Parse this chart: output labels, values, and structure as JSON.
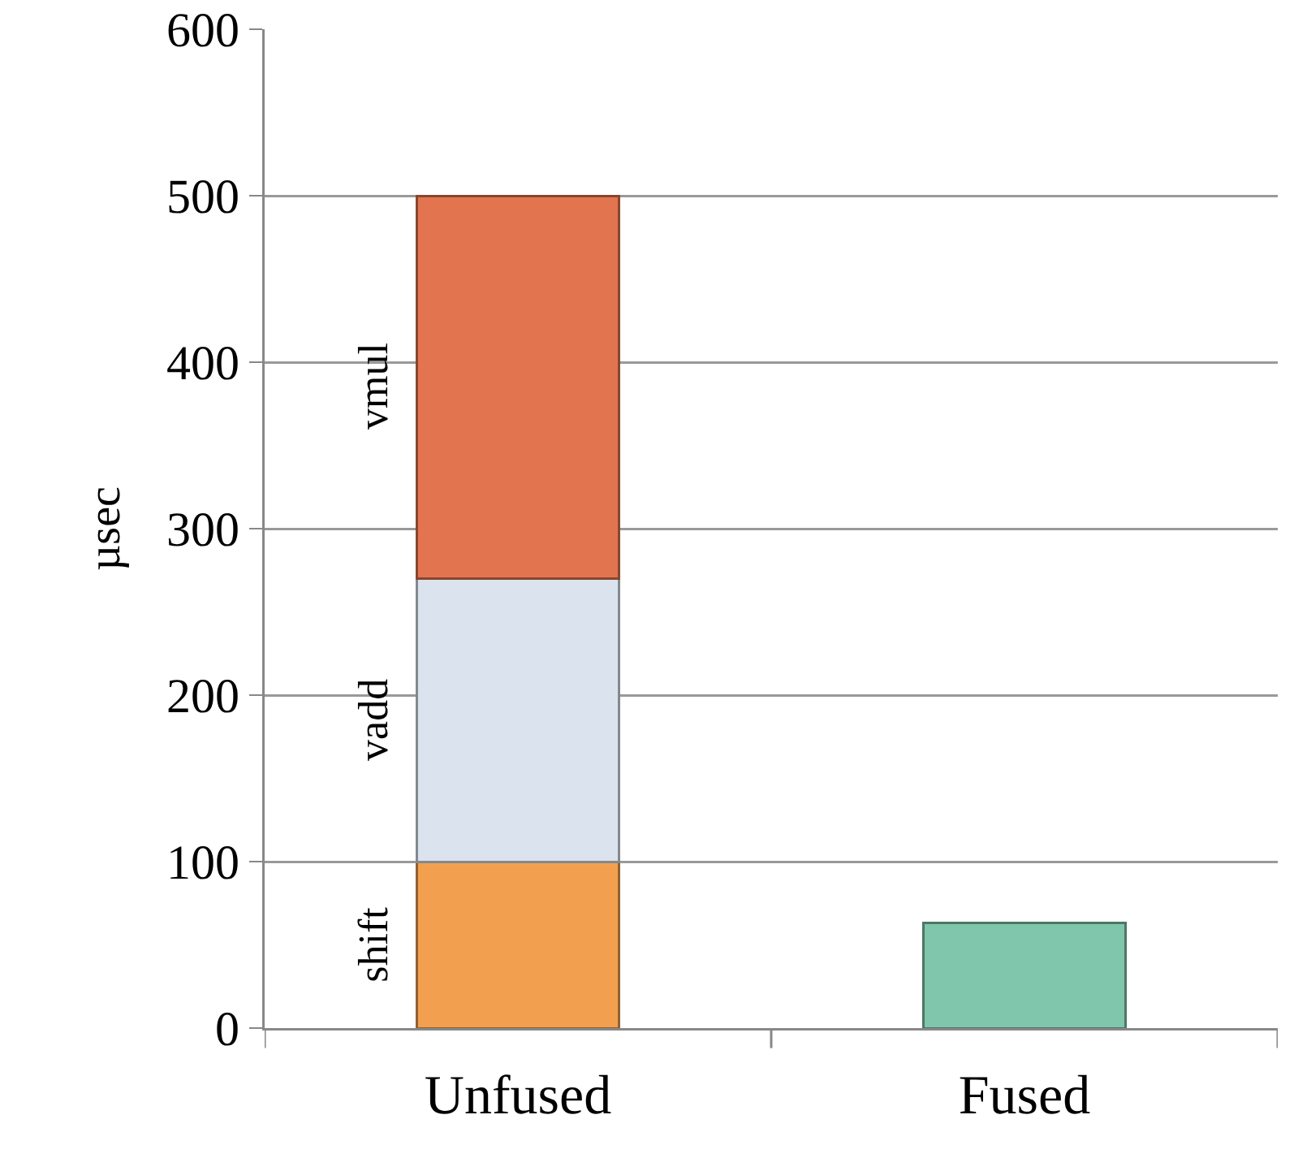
{
  "chart_data": {
    "type": "bar",
    "stacked": true,
    "ylabel": "µsec",
    "categories": [
      "Unfused",
      "Fused"
    ],
    "series": [
      {
        "name": "shift",
        "color": "#f2a050",
        "values": [
          100,
          null
        ]
      },
      {
        "name": "vadd",
        "color": "#dbe4ee",
        "values": [
          170,
          null
        ]
      },
      {
        "name": "vmul",
        "color": "#e2754f",
        "values": [
          230,
          null
        ]
      },
      {
        "color": "#80c6ac",
        "values": [
          null,
          63
        ]
      }
    ],
    "ylim": [
      0,
      600
    ],
    "yticks": [
      0,
      100,
      200,
      300,
      400,
      500,
      600
    ],
    "grid": "y",
    "legend": false
  }
}
